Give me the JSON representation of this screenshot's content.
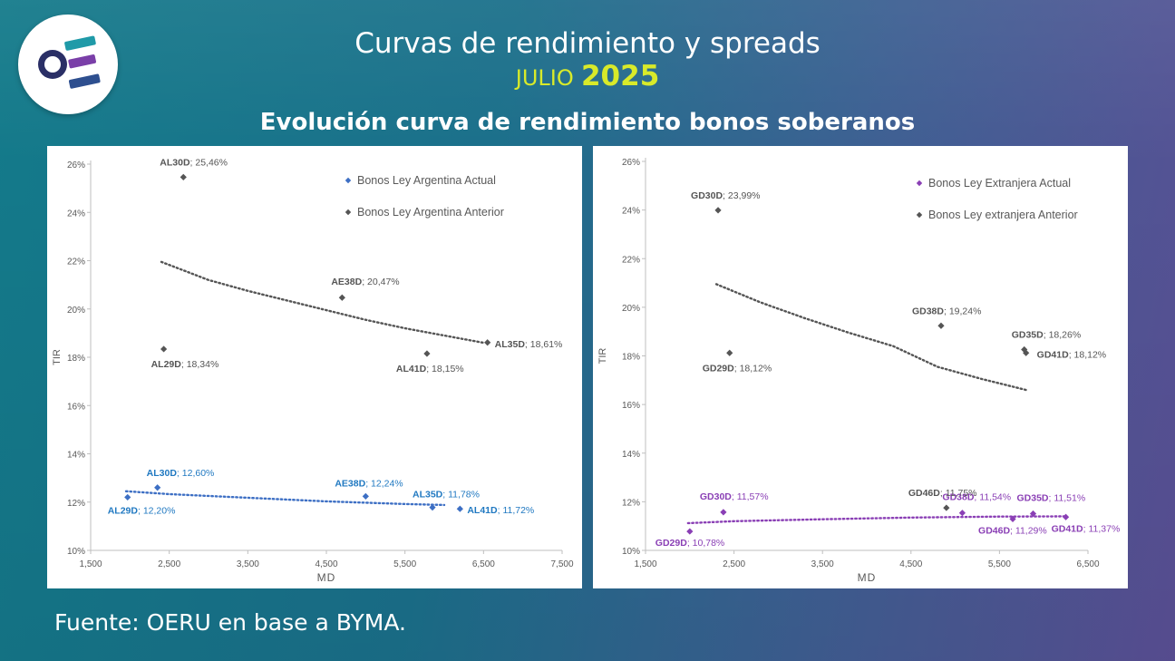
{
  "header": {
    "title": "Curvas de rendimiento y spreads",
    "month": "JULIO",
    "year": "2025",
    "subtitle": "Evolución curva de rendimiento bonos soberanos"
  },
  "footer": {
    "source": "Fuente: OERU en base a BYMA."
  },
  "colors": {
    "current_ar": "#3d6fc4",
    "previous": "#555555",
    "current_ext": "#8a3fb5",
    "label_blue": "#1f78c1",
    "label_purple": "#8a3fb5"
  },
  "chart_data": [
    {
      "type": "scatter",
      "xlabel": "MD",
      "ylabel": "TIR",
      "xlim": [
        1500,
        7500
      ],
      "ylim": [
        10,
        26
      ],
      "xticks": [
        "1,500",
        "2,500",
        "3,500",
        "4,500",
        "5,500",
        "6,500",
        "7,500"
      ],
      "yticks": [
        "10%",
        "12%",
        "14%",
        "16%",
        "18%",
        "20%",
        "22%",
        "24%",
        "26%"
      ],
      "legend_position": "top-right",
      "series": [
        {
          "name": "Bonos Ley Argentina Actual",
          "points": [
            {
              "code": "AL29D",
              "value": "12,20%",
              "x": 1970,
              "y": 12.2
            },
            {
              "code": "AL30D",
              "value": "12,60%",
              "x": 2350,
              "y": 12.6
            },
            {
              "code": "AE38D",
              "value": "12,24%",
              "x": 5000,
              "y": 12.24
            },
            {
              "code": "AL35D",
              "value": "11,78%",
              "x": 5850,
              "y": 11.78
            },
            {
              "code": "AL41D",
              "value": "11,72%",
              "x": 6200,
              "y": 11.72
            }
          ],
          "trend": [
            [
              1950,
              12.45
            ],
            [
              2500,
              12.33
            ],
            [
              3500,
              12.18
            ],
            [
              4500,
              12.03
            ],
            [
              5500,
              11.92
            ],
            [
              6000,
              11.88
            ]
          ]
        },
        {
          "name": "Bonos Ley Argentina Anterior",
          "points": [
            {
              "code": "AL29D",
              "value": "18,34%",
              "x": 2430,
              "y": 18.34
            },
            {
              "code": "AL30D",
              "value": "25,46%",
              "x": 2680,
              "y": 25.46
            },
            {
              "code": "AE38D",
              "value": "20,47%",
              "x": 4700,
              "y": 20.47
            },
            {
              "code": "AL41D",
              "value": "18,15%",
              "x": 5780,
              "y": 18.15
            },
            {
              "code": "AL35D",
              "value": "18,61%",
              "x": 6550,
              "y": 18.61
            }
          ],
          "trend": [
            [
              2400,
              21.95
            ],
            [
              3000,
              21.2
            ],
            [
              3500,
              20.75
            ],
            [
              4000,
              20.35
            ],
            [
              4500,
              19.95
            ],
            [
              5000,
              19.55
            ],
            [
              5500,
              19.2
            ],
            [
              6000,
              18.9
            ],
            [
              6500,
              18.6
            ]
          ]
        }
      ]
    },
    {
      "type": "scatter",
      "xlabel": "MD",
      "ylabel": "TIR",
      "xlim": [
        1500,
        6500
      ],
      "ylim": [
        10,
        26
      ],
      "xticks": [
        "1,500",
        "2,500",
        "3,500",
        "4,500",
        "5,500",
        "6,500"
      ],
      "yticks": [
        "10%",
        "12%",
        "14%",
        "16%",
        "18%",
        "20%",
        "22%",
        "24%",
        "26%"
      ],
      "legend_position": "top-right",
      "series": [
        {
          "name": "Bonos Ley Extranjera Actual",
          "points": [
            {
              "code": "GD29D",
              "value": "10,78%",
              "x": 2000,
              "y": 10.78
            },
            {
              "code": "GD30D",
              "value": "11,57%",
              "x": 2380,
              "y": 11.57
            },
            {
              "code": "GD38D",
              "value": "11,54%",
              "x": 5080,
              "y": 11.54
            },
            {
              "code": "GD46D",
              "value": "11,29%",
              "x": 5650,
              "y": 11.29
            },
            {
              "code": "GD35D",
              "value": "11,51%",
              "x": 5880,
              "y": 11.51
            },
            {
              "code": "GD41D",
              "value": "11,37%",
              "x": 6250,
              "y": 11.37
            }
          ],
          "trend": [
            [
              1980,
              11.12
            ],
            [
              2500,
              11.2
            ],
            [
              3500,
              11.28
            ],
            [
              4500,
              11.35
            ],
            [
              5500,
              11.39
            ],
            [
              6250,
              11.4
            ]
          ]
        },
        {
          "name": "Bonos Ley extranjera Anterior",
          "points": [
            {
              "code": "GD29D",
              "value": "18,12%",
              "x": 2450,
              "y": 18.12
            },
            {
              "code": "GD30D",
              "value": "23,99%",
              "x": 2320,
              "y": 23.99
            },
            {
              "code": "GD46D",
              "value": "11,75%",
              "x": 4900,
              "y": 11.75
            },
            {
              "code": "GD38D",
              "value": "19,24%",
              "x": 4840,
              "y": 19.24
            },
            {
              "code": "GD35D",
              "value": "18,26%",
              "x": 5780,
              "y": 18.26
            },
            {
              "code": "GD41D",
              "value": "18,12%",
              "x": 5800,
              "y": 18.12
            }
          ],
          "trend": [
            [
              2300,
              20.95
            ],
            [
              2800,
              20.2
            ],
            [
              3300,
              19.55
            ],
            [
              3800,
              18.95
            ],
            [
              4300,
              18.4
            ],
            [
              4800,
              17.55
            ],
            [
              5300,
              17.05
            ],
            [
              5800,
              16.6
            ]
          ]
        }
      ]
    }
  ]
}
